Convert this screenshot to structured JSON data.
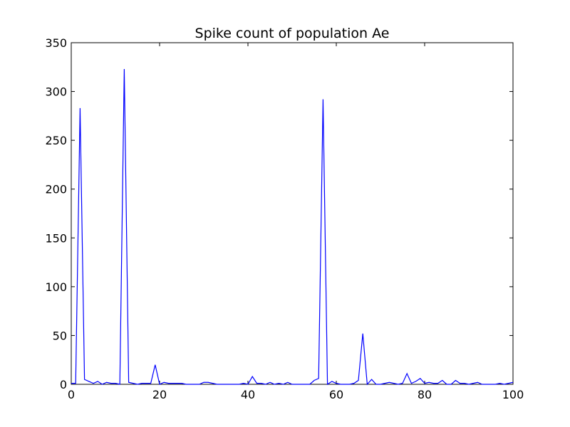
{
  "chart_data": {
    "type": "line",
    "title": "Spike count of population Ae",
    "xlabel": "",
    "ylabel": "",
    "xlim": [
      0,
      100
    ],
    "ylim": [
      0,
      350
    ],
    "xticks": [
      0,
      20,
      40,
      60,
      80,
      100
    ],
    "yticks": [
      0,
      50,
      100,
      150,
      200,
      250,
      300,
      350
    ],
    "grid": false,
    "legend": "none",
    "series": [
      {
        "color": "#0000ff",
        "x": [
          0,
          1,
          2,
          3,
          4,
          5,
          6,
          7,
          8,
          9,
          10,
          11,
          12,
          13,
          14,
          15,
          16,
          17,
          18,
          19,
          20,
          21,
          22,
          23,
          24,
          25,
          26,
          27,
          28,
          29,
          30,
          31,
          32,
          33,
          34,
          35,
          36,
          37,
          38,
          39,
          40,
          41,
          42,
          43,
          44,
          45,
          46,
          47,
          48,
          49,
          50,
          51,
          52,
          53,
          54,
          55,
          56,
          57,
          58,
          59,
          60,
          61,
          62,
          63,
          64,
          65,
          66,
          67,
          68,
          69,
          70,
          71,
          72,
          73,
          74,
          75,
          76,
          77,
          78,
          79,
          80,
          81,
          82,
          83,
          84,
          85,
          86,
          87,
          88,
          89,
          90,
          91,
          92,
          93,
          94,
          95,
          96,
          97,
          98,
          99,
          100
        ],
        "y": [
          1,
          1,
          283,
          5,
          3,
          1,
          3,
          0,
          2,
          1,
          1,
          0,
          323,
          2,
          1,
          0,
          1,
          1,
          1,
          20,
          0,
          2,
          1,
          1,
          1,
          1,
          0,
          0,
          0,
          0,
          2,
          2,
          1,
          0,
          0,
          0,
          0,
          0,
          0,
          1,
          0,
          8,
          1,
          1,
          0,
          2,
          0,
          1,
          0,
          2,
          0,
          0,
          0,
          0,
          0,
          4,
          6,
          292,
          0,
          3,
          1,
          0,
          0,
          0,
          1,
          4,
          52,
          0,
          5,
          0,
          0,
          1,
          2,
          1,
          0,
          1,
          11,
          1,
          3,
          6,
          1,
          2,
          1,
          1,
          4,
          0,
          0,
          4,
          1,
          1,
          0,
          1,
          2,
          0,
          0,
          0,
          0,
          1,
          0,
          1,
          2
        ]
      }
    ]
  }
}
